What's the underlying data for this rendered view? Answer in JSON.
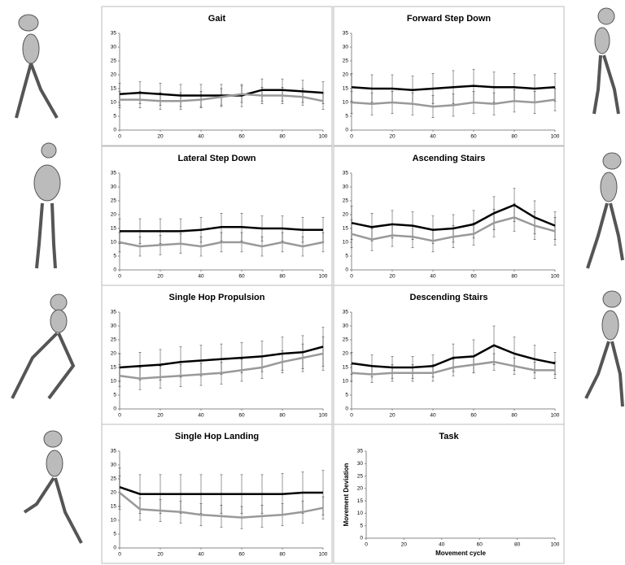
{
  "chart_data": [
    {
      "type": "line",
      "title": "Gait",
      "x": [
        0,
        10,
        20,
        30,
        40,
        50,
        60,
        70,
        80,
        90,
        100
      ],
      "series": [
        {
          "color": "#000000",
          "values": [
            13,
            13.5,
            13,
            12.5,
            12.5,
            12.5,
            12.5,
            14.5,
            14.5,
            14,
            13.5
          ],
          "errors": [
            4,
            4,
            4,
            4,
            4,
            4,
            4,
            4,
            4,
            4,
            4
          ]
        },
        {
          "color": "#999999",
          "values": [
            11,
            11,
            10.5,
            10.5,
            11,
            12,
            13,
            12.5,
            12.5,
            12,
            10.5
          ],
          "errors": [
            3,
            3,
            3,
            3,
            3,
            3,
            3,
            3,
            3,
            3,
            3
          ]
        }
      ],
      "xlim": [
        0,
        100
      ],
      "xticks": [
        0,
        20,
        40,
        60,
        80,
        100
      ],
      "ylim": [
        0,
        35
      ],
      "yticks": [
        0,
        5,
        10,
        15,
        20,
        25,
        30,
        35
      ]
    },
    {
      "type": "line",
      "title": "Forward Step Down",
      "x": [
        0,
        10,
        20,
        30,
        40,
        50,
        60,
        70,
        80,
        90,
        100
      ],
      "series": [
        {
          "color": "#000000",
          "values": [
            15.5,
            15,
            15,
            14.5,
            15,
            15.5,
            16,
            15.5,
            15.5,
            15,
            15.5
          ],
          "errors": [
            5,
            5,
            5,
            5,
            5.5,
            6,
            6,
            5.5,
            5,
            5,
            5
          ]
        },
        {
          "color": "#999999",
          "values": [
            10,
            9.5,
            10,
            9.5,
            8.5,
            9,
            10,
            9.5,
            10.5,
            10,
            11
          ],
          "errors": [
            4,
            4,
            4,
            4,
            4,
            4,
            4,
            4,
            4,
            4,
            4
          ]
        }
      ],
      "xlim": [
        0,
        100
      ],
      "xticks": [
        0,
        20,
        40,
        60,
        80,
        100
      ],
      "ylim": [
        0,
        35
      ],
      "yticks": [
        0,
        5,
        10,
        15,
        20,
        25,
        30,
        35
      ]
    },
    {
      "type": "line",
      "title": "Lateral Step Down",
      "x": [
        0,
        10,
        20,
        30,
        40,
        50,
        60,
        70,
        80,
        90,
        100
      ],
      "series": [
        {
          "color": "#000000",
          "values": [
            14,
            14,
            14,
            14,
            14.5,
            15.5,
            15.5,
            15,
            15,
            14.5,
            14.5
          ],
          "errors": [
            4.5,
            4.5,
            4.5,
            4.5,
            4.5,
            5,
            5,
            4.5,
            4.5,
            4.5,
            4.5
          ]
        },
        {
          "color": "#999999",
          "values": [
            10,
            8.5,
            9,
            9.5,
            8.5,
            10,
            10,
            8.5,
            10,
            8.5,
            10
          ],
          "errors": [
            3.5,
            3.5,
            3.5,
            3.5,
            3.5,
            3.5,
            3.5,
            3.5,
            3.5,
            3.5,
            3.5
          ]
        }
      ],
      "xlim": [
        0,
        100
      ],
      "xticks": [
        0,
        20,
        40,
        60,
        80,
        100
      ],
      "ylim": [
        0,
        35
      ],
      "yticks": [
        0,
        5,
        10,
        15,
        20,
        25,
        30,
        35
      ]
    },
    {
      "type": "line",
      "title": "Ascending Stairs",
      "x": [
        0,
        10,
        20,
        30,
        40,
        50,
        60,
        70,
        80,
        90,
        100
      ],
      "series": [
        {
          "color": "#000000",
          "values": [
            17,
            15.5,
            16.5,
            16,
            14.5,
            15,
            16.5,
            20.5,
            23.5,
            19,
            16
          ],
          "errors": [
            6,
            5,
            5,
            5,
            5,
            5,
            5,
            6,
            6,
            6,
            5
          ]
        },
        {
          "color": "#999999",
          "values": [
            13,
            11,
            12.5,
            12,
            10.5,
            12,
            13,
            17,
            19,
            16,
            14
          ],
          "errors": [
            5,
            4,
            4,
            4,
            4,
            4,
            4,
            5,
            5,
            5,
            5
          ]
        }
      ],
      "xlim": [
        0,
        100
      ],
      "xticks": [
        0,
        20,
        40,
        60,
        80,
        100
      ],
      "ylim": [
        0,
        35
      ],
      "yticks": [
        0,
        5,
        10,
        15,
        20,
        25,
        30,
        35
      ]
    },
    {
      "type": "line",
      "title": "Single Hop Propulsion",
      "x": [
        0,
        10,
        20,
        30,
        40,
        50,
        60,
        70,
        80,
        90,
        100
      ],
      "series": [
        {
          "color": "#000000",
          "values": [
            15,
            15.5,
            16,
            17,
            17.5,
            18,
            18.5,
            19,
            20,
            20.5,
            22.5
          ],
          "errors": [
            5,
            5,
            5.5,
            5.5,
            5.5,
            5.5,
            5.5,
            5.5,
            6,
            6,
            7
          ]
        },
        {
          "color": "#999999",
          "values": [
            12,
            11,
            11.5,
            12,
            12.5,
            13,
            14,
            15,
            17,
            18.5,
            20
          ],
          "errors": [
            4,
            4,
            4,
            4,
            4,
            4,
            4,
            4,
            4,
            5,
            6
          ]
        }
      ],
      "xlim": [
        0,
        100
      ],
      "xticks": [
        0,
        20,
        40,
        60,
        80,
        100
      ],
      "ylim": [
        0,
        35
      ],
      "yticks": [
        0,
        5,
        10,
        15,
        20,
        25,
        30,
        35
      ]
    },
    {
      "type": "line",
      "title": "Descending Stairs",
      "x": [
        0,
        10,
        20,
        30,
        40,
        50,
        60,
        70,
        80,
        90,
        100
      ],
      "series": [
        {
          "color": "#000000",
          "values": [
            16.5,
            15.5,
            15,
            15,
            15.5,
            18.5,
            19,
            23,
            20,
            18,
            16.5
          ],
          "errors": [
            4,
            4,
            4,
            4,
            4,
            5,
            6,
            7,
            6,
            5,
            4
          ]
        },
        {
          "color": "#999999",
          "values": [
            13,
            12.5,
            13,
            13,
            13,
            15,
            16,
            17,
            15.5,
            14,
            14
          ],
          "errors": [
            3,
            3,
            3,
            3,
            3,
            3,
            3,
            3,
            3,
            3,
            3
          ]
        }
      ],
      "xlim": [
        0,
        100
      ],
      "xticks": [
        0,
        20,
        40,
        60,
        80,
        100
      ],
      "ylim": [
        0,
        35
      ],
      "yticks": [
        0,
        5,
        10,
        15,
        20,
        25,
        30,
        35
      ]
    },
    {
      "type": "line",
      "title": "Single Hop Landing",
      "x": [
        0,
        10,
        20,
        30,
        40,
        50,
        60,
        70,
        80,
        90,
        100
      ],
      "series": [
        {
          "color": "#000000",
          "values": [
            22,
            19.5,
            19.5,
            19.5,
            19.5,
            19.5,
            19.5,
            19.5,
            19.5,
            20,
            20
          ],
          "errors": [
            7,
            7,
            7,
            7,
            7,
            7,
            7,
            7,
            7.5,
            7.5,
            8
          ]
        },
        {
          "color": "#999999",
          "values": [
            20,
            14,
            13.5,
            13,
            12,
            11.5,
            11,
            11.5,
            12,
            13,
            14.5
          ],
          "errors": [
            6,
            4,
            4,
            4,
            4,
            4,
            4,
            4,
            4,
            4,
            4
          ]
        }
      ],
      "xlim": [
        0,
        100
      ],
      "xticks": [
        0,
        20,
        40,
        60,
        80,
        100
      ],
      "ylim": [
        0,
        35
      ],
      "yticks": [
        0,
        5,
        10,
        15,
        20,
        25,
        30,
        35
      ]
    },
    {
      "type": "axes",
      "title": "Task",
      "ylabel": "Movement Deviation",
      "xlabel": "Movement cycle",
      "xlim": [
        0,
        100
      ],
      "xticks": [
        0,
        20,
        40,
        60,
        80,
        100
      ],
      "ylim": [
        0,
        35
      ],
      "yticks": [
        0,
        5,
        10,
        15,
        20,
        25,
        30,
        35
      ]
    }
  ]
}
